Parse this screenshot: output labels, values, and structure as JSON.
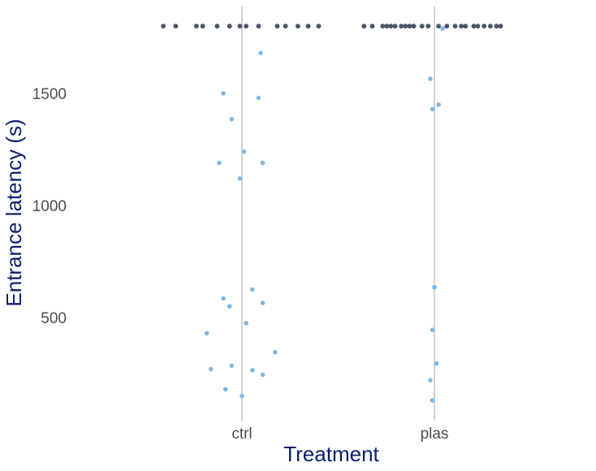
{
  "chart_data": {
    "type": "scatter",
    "title": "",
    "xlabel": "Treatment",
    "ylabel": "Entrance latency (s)",
    "categories": [
      "ctrl",
      "plas"
    ],
    "ylim": [
      100,
      1870
    ],
    "yticks": [
      500,
      1000,
      1500
    ],
    "grid": "vertical lines at categories",
    "legend": "none",
    "colors": {
      "entered": "#7db8e6",
      "censored": "#4a5566",
      "gridline": "#bebebe"
    },
    "series": [
      {
        "group": "entered",
        "points": [
          {
            "category": "ctrl",
            "offset": 0.09,
            "y": 1680
          },
          {
            "category": "ctrl",
            "offset": -0.09,
            "y": 1500
          },
          {
            "category": "ctrl",
            "offset": 0.08,
            "y": 1480
          },
          {
            "category": "ctrl",
            "offset": -0.05,
            "y": 1385
          },
          {
            "category": "ctrl",
            "offset": 0.01,
            "y": 1240
          },
          {
            "category": "ctrl",
            "offset": -0.11,
            "y": 1190
          },
          {
            "category": "ctrl",
            "offset": 0.1,
            "y": 1190
          },
          {
            "category": "ctrl",
            "offset": -0.01,
            "y": 1120
          },
          {
            "category": "ctrl",
            "offset": 0.05,
            "y": 625
          },
          {
            "category": "ctrl",
            "offset": -0.09,
            "y": 585
          },
          {
            "category": "ctrl",
            "offset": 0.1,
            "y": 565
          },
          {
            "category": "ctrl",
            "offset": -0.06,
            "y": 550
          },
          {
            "category": "ctrl",
            "offset": 0.02,
            "y": 475
          },
          {
            "category": "ctrl",
            "offset": -0.17,
            "y": 430
          },
          {
            "category": "ctrl",
            "offset": 0.16,
            "y": 345
          },
          {
            "category": "ctrl",
            "offset": -0.05,
            "y": 285
          },
          {
            "category": "ctrl",
            "offset": -0.15,
            "y": 270
          },
          {
            "category": "ctrl",
            "offset": 0.05,
            "y": 265
          },
          {
            "category": "ctrl",
            "offset": 0.1,
            "y": 245
          },
          {
            "category": "ctrl",
            "offset": -0.08,
            "y": 180
          },
          {
            "category": "ctrl",
            "offset": 0.0,
            "y": 150
          },
          {
            "category": "plas",
            "offset": 0.04,
            "y": 1790
          },
          {
            "category": "plas",
            "offset": -0.02,
            "y": 1565
          },
          {
            "category": "plas",
            "offset": 0.02,
            "y": 1450
          },
          {
            "category": "plas",
            "offset": -0.01,
            "y": 1430
          },
          {
            "category": "plas",
            "offset": 0.0,
            "y": 635
          },
          {
            "category": "plas",
            "offset": -0.01,
            "y": 445
          },
          {
            "category": "plas",
            "offset": 0.01,
            "y": 295
          },
          {
            "category": "plas",
            "offset": -0.02,
            "y": 220
          },
          {
            "category": "plas",
            "offset": -0.01,
            "y": 130
          }
        ]
      },
      {
        "group": "censored",
        "points": [
          {
            "category": "ctrl",
            "offset": -0.38,
            "y": 1800
          },
          {
            "category": "ctrl",
            "offset": -0.32,
            "y": 1800
          },
          {
            "category": "ctrl",
            "offset": -0.22,
            "y": 1800
          },
          {
            "category": "ctrl",
            "offset": -0.19,
            "y": 1800
          },
          {
            "category": "ctrl",
            "offset": -0.12,
            "y": 1800
          },
          {
            "category": "ctrl",
            "offset": -0.06,
            "y": 1800
          },
          {
            "category": "ctrl",
            "offset": -0.01,
            "y": 1800
          },
          {
            "category": "ctrl",
            "offset": 0.02,
            "y": 1800
          },
          {
            "category": "ctrl",
            "offset": 0.08,
            "y": 1800
          },
          {
            "category": "ctrl",
            "offset": 0.17,
            "y": 1800
          },
          {
            "category": "ctrl",
            "offset": 0.21,
            "y": 1800
          },
          {
            "category": "ctrl",
            "offset": 0.27,
            "y": 1800
          },
          {
            "category": "ctrl",
            "offset": 0.32,
            "y": 1800
          },
          {
            "category": "ctrl",
            "offset": 0.37,
            "y": 1800
          },
          {
            "category": "plas",
            "offset": -0.34,
            "y": 1800
          },
          {
            "category": "plas",
            "offset": -0.3,
            "y": 1800
          },
          {
            "category": "plas",
            "offset": -0.25,
            "y": 1800
          },
          {
            "category": "plas",
            "offset": -0.23,
            "y": 1800
          },
          {
            "category": "plas",
            "offset": -0.21,
            "y": 1800
          },
          {
            "category": "plas",
            "offset": -0.19,
            "y": 1800
          },
          {
            "category": "plas",
            "offset": -0.16,
            "y": 1800
          },
          {
            "category": "plas",
            "offset": -0.14,
            "y": 1800
          },
          {
            "category": "plas",
            "offset": -0.12,
            "y": 1800
          },
          {
            "category": "plas",
            "offset": -0.1,
            "y": 1800
          },
          {
            "category": "plas",
            "offset": -0.06,
            "y": 1800
          },
          {
            "category": "plas",
            "offset": -0.03,
            "y": 1800
          },
          {
            "category": "plas",
            "offset": 0.02,
            "y": 1800
          },
          {
            "category": "plas",
            "offset": 0.06,
            "y": 1800
          },
          {
            "category": "plas",
            "offset": 0.1,
            "y": 1800
          },
          {
            "category": "plas",
            "offset": 0.13,
            "y": 1800
          },
          {
            "category": "plas",
            "offset": 0.15,
            "y": 1800
          },
          {
            "category": "plas",
            "offset": 0.19,
            "y": 1800
          },
          {
            "category": "plas",
            "offset": 0.21,
            "y": 1800
          },
          {
            "category": "plas",
            "offset": 0.24,
            "y": 1800
          },
          {
            "category": "plas",
            "offset": 0.27,
            "y": 1800
          },
          {
            "category": "plas",
            "offset": 0.3,
            "y": 1800
          },
          {
            "category": "plas",
            "offset": 0.32,
            "y": 1800
          }
        ]
      }
    ]
  }
}
